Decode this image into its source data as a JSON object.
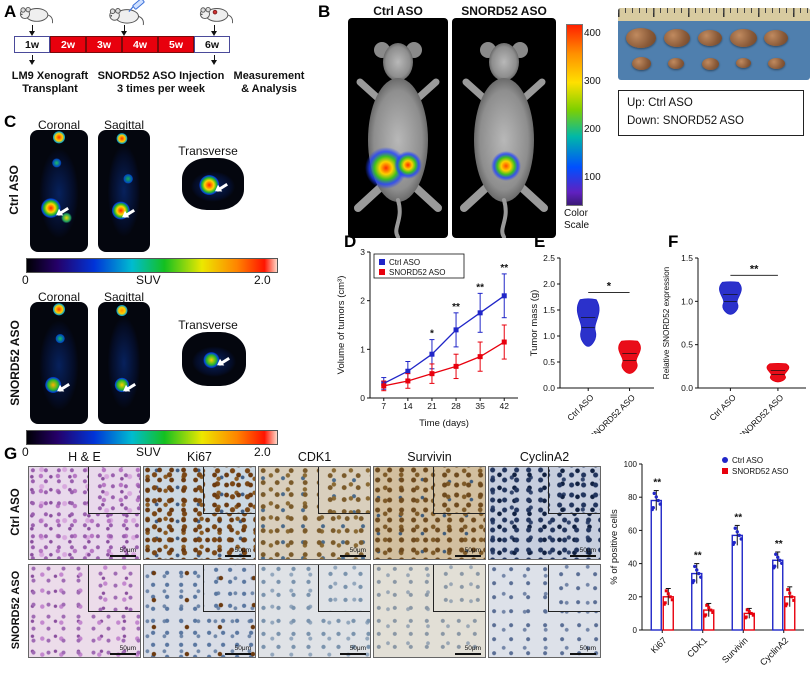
{
  "panels": {
    "A": {
      "label": "A",
      "timeline": [
        "1w",
        "2w",
        "3w",
        "4w",
        "5w",
        "6w"
      ],
      "captions": [
        "LM9 Xenograft\nTransplant",
        "SNORD52 ASO Injection\n3 times per week",
        "Measurement\n& Analysis"
      ]
    },
    "B": {
      "label": "B",
      "mice": [
        "Ctrl ASO",
        "SNORD52 ASO"
      ],
      "colorbar_ticks": [
        "400",
        "300",
        "200",
        "100"
      ],
      "colorbar_caption": "Color\nScale",
      "photo_legend": [
        "Up: Ctrl ASO",
        "Down: SNORD52 ASO"
      ]
    },
    "C": {
      "label": "C",
      "view_headers": [
        "Coronal",
        "Sagittal",
        "Transverse"
      ],
      "groups": [
        {
          "row_label": "Ctrl ASO"
        },
        {
          "row_label": "SNORD52 ASO"
        }
      ],
      "suv_scale": {
        "min": "0",
        "label": "SUV",
        "max": "2.0"
      }
    },
    "D": {
      "label": "D"
    },
    "E": {
      "label": "E"
    },
    "F": {
      "label": "F"
    },
    "G": {
      "label": "G",
      "col_headers": [
        "H & E",
        "Ki67",
        "CDK1",
        "Survivin",
        "CyclinA2"
      ],
      "row_labels": [
        "Ctrl ASO",
        "SNORD52 ASO"
      ],
      "scale_bar": "50μm"
    }
  },
  "colors": {
    "ctrl": "#2026c8",
    "snord": "#e8000d"
  },
  "chart_data": [
    {
      "id": "D",
      "type": "line",
      "title": "",
      "x": [
        7,
        14,
        21,
        28,
        35,
        42
      ],
      "xlabel": "Time (days)",
      "ylabel": "Volume of tumors (cm³)",
      "ylim": [
        0,
        3
      ],
      "yticks": [
        0,
        1,
        2,
        3
      ],
      "ytick_labels": [
        "0",
        "1",
        "2",
        "3"
      ],
      "legend_position": "top-left",
      "grid": false,
      "series": [
        {
          "name": "Ctrl ASO",
          "color": "#2026c8",
          "values": [
            0.3,
            0.55,
            0.9,
            1.4,
            1.75,
            2.1
          ],
          "errors": [
            0.12,
            0.2,
            0.3,
            0.35,
            0.4,
            0.45
          ]
        },
        {
          "name": "SNORD52 ASO",
          "color": "#e8000d",
          "values": [
            0.25,
            0.35,
            0.5,
            0.65,
            0.85,
            1.15
          ],
          "errors": [
            0.1,
            0.15,
            0.2,
            0.25,
            0.3,
            0.35
          ]
        }
      ],
      "significance": [
        {
          "x": 21,
          "label": "*"
        },
        {
          "x": 28,
          "label": "**"
        },
        {
          "x": 35,
          "label": "**"
        },
        {
          "x": 42,
          "label": "**"
        }
      ]
    },
    {
      "id": "E",
      "type": "violin",
      "title": "",
      "xlabel": "",
      "ylabel": "Tumor mass (g)",
      "ylim": [
        0,
        2.5
      ],
      "yticks": [
        0,
        0.5,
        1,
        1.5,
        2,
        2.5
      ],
      "ytick_labels": [
        "0.0",
        "0.5",
        "1.0",
        "1.5",
        "2.0",
        "2.5"
      ],
      "categories": [
        "Ctrl ASO",
        "SNORD52 ASO"
      ],
      "violins": [
        {
          "name": "Ctrl ASO",
          "color": "#2026c8",
          "min": 0.8,
          "max": 1.7,
          "median": 1.15
        },
        {
          "name": "SNORD52 ASO",
          "color": "#e8000d",
          "min": 0.28,
          "max": 0.9,
          "median": 0.55
        }
      ],
      "significance": "*"
    },
    {
      "id": "F",
      "type": "violin",
      "title": "",
      "xlabel": "",
      "ylabel": "Relative SNORD52 expression",
      "ylim": [
        0,
        1.5
      ],
      "yticks": [
        0,
        0.5,
        1,
        1.5
      ],
      "ytick_labels": [
        "0.0",
        "0.5",
        "1.0",
        "1.5"
      ],
      "categories": [
        "Ctrl ASO",
        "SNORD52 ASO"
      ],
      "violins": [
        {
          "name": "Ctrl ASO",
          "color": "#2026c8",
          "min": 0.85,
          "max": 1.22,
          "median": 1.02
        },
        {
          "name": "SNORD52 ASO",
          "color": "#e8000d",
          "min": 0.07,
          "max": 0.28,
          "median": 0.16
        }
      ],
      "significance": "**"
    },
    {
      "id": "G",
      "type": "bar",
      "title": "",
      "xlabel": "",
      "ylabel": "% of positive cells",
      "ylim": [
        0,
        100
      ],
      "yticks": [
        0,
        20,
        40,
        60,
        80,
        100
      ],
      "ytick_labels": [
        "0",
        "20",
        "40",
        "60",
        "80",
        "100"
      ],
      "legend_position": "top-right",
      "categories": [
        "Ki67",
        "CDK1",
        "Survivin",
        "CyclinA2"
      ],
      "series": [
        {
          "name": "Ctrl ASO",
          "color": "#2026c8",
          "marker": "circle",
          "values": [
            78,
            34,
            57,
            42
          ],
          "errors": [
            6,
            6,
            6,
            5
          ]
        },
        {
          "name": "SNORD52 ASO",
          "color": "#e8000d",
          "marker": "square",
          "values": [
            20,
            12,
            10,
            20
          ],
          "errors": [
            5,
            4,
            3,
            6
          ]
        }
      ],
      "significance": [
        "**",
        "**",
        "**",
        "**"
      ]
    }
  ]
}
